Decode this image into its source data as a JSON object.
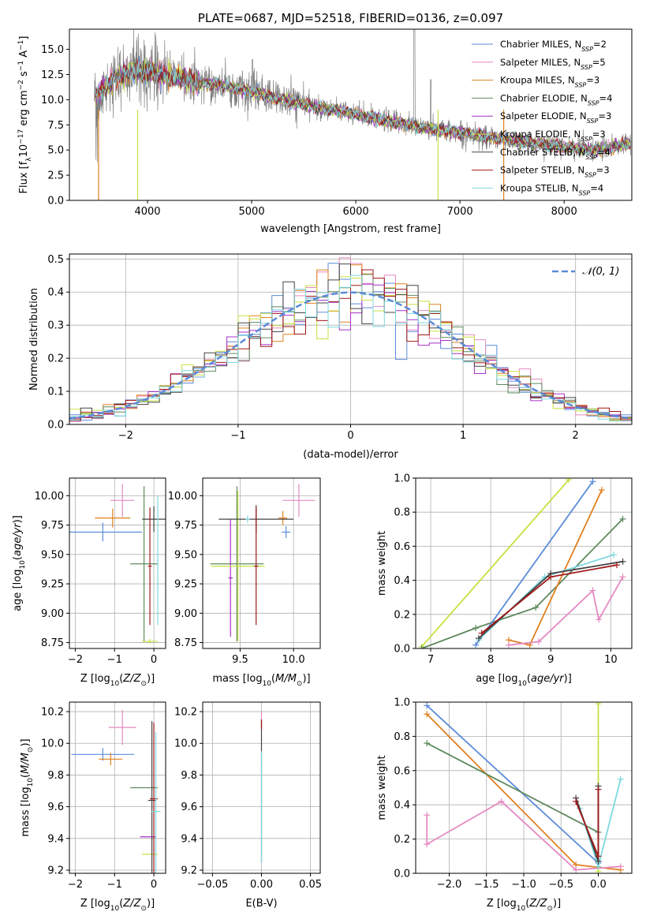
{
  "colors": {
    "chabrier_miles": "#5b8bd9",
    "salpeter_miles": "#e58ac0",
    "kroupa_miles": "#e0801f",
    "chabrier_elodie": "#5e8a5e",
    "salpeter_elodie": "#a830c8",
    "kroupa_elodie": "#c8e040",
    "chabrier_stelib": "#444444",
    "salpeter_stelib": "#a01818",
    "kroupa_stelib": "#7fd8e0",
    "data": "#808080"
  },
  "chart_data": [
    {
      "id": "spectrum",
      "type": "line",
      "title": "PLATE=0687, MJD=52518, FIBERID=0136, z=0.097",
      "xlabel": "wavelength [Angstrom, rest frame]",
      "ylabel_parts": [
        "Flux [f",
        "λ",
        "10",
        "−17",
        " erg cm",
        "−2",
        " s",
        "−1",
        " A",
        "−1",
        "]"
      ],
      "xlim": [
        3250,
        8650
      ],
      "ylim": [
        0,
        17
      ],
      "x_ticks": [
        4000,
        5000,
        6000,
        7000,
        8000
      ],
      "x_tick_labels": [
        "4000",
        "5000",
        "6000",
        "7000",
        "8000"
      ],
      "y_ticks": [
        0,
        2.5,
        5,
        7.5,
        10,
        12.5,
        15
      ],
      "y_tick_labels": [
        "0.0",
        "2.5",
        "5.0",
        "7.5",
        "10.0",
        "12.5",
        "15.0"
      ],
      "continuum": {
        "x": [
          3450,
          3700,
          3900,
          4100,
          4400,
          4700,
          5000,
          5300,
          5600,
          5900,
          6200,
          6500,
          6800,
          7100,
          7400,
          7700,
          8000,
          8300,
          8600
        ],
        "y": [
          10.0,
          12.3,
          12.8,
          12.6,
          11.9,
          11.4,
          10.8,
          10.0,
          9.3,
          8.8,
          8.1,
          7.5,
          7.0,
          6.6,
          6.1,
          5.7,
          5.3,
          5.0,
          5.6
        ]
      },
      "legend": [
        {
          "key": "chabrier_miles",
          "label": "Chabrier MILES, N",
          "sub": "SSP",
          "suffix": "=2"
        },
        {
          "key": "salpeter_miles",
          "label": "Salpeter MILES, N",
          "sub": "SSP",
          "suffix": "=5"
        },
        {
          "key": "kroupa_miles",
          "label": "Kroupa MILES, N",
          "sub": "SSP",
          "suffix": "=3"
        },
        {
          "key": "chabrier_elodie",
          "label": "Chabrier ELODIE, N",
          "sub": "SSP",
          "suffix": "=4"
        },
        {
          "key": "salpeter_elodie",
          "label": "Salpeter ELODIE, N",
          "sub": "SSP",
          "suffix": "=3"
        },
        {
          "key": "kroupa_elodie",
          "label": "Kroupa ELODIE, N",
          "sub": "SSP",
          "suffix": "=3"
        },
        {
          "key": "chabrier_stelib",
          "label": "Chabrier STELIB, N",
          "sub": "SSP",
          "suffix": "=4"
        },
        {
          "key": "salpeter_stelib",
          "label": "Salpeter STELIB, N",
          "sub": "SSP",
          "suffix": "=3"
        },
        {
          "key": "kroupa_stelib",
          "label": "Kroupa STELIB, N",
          "sub": "SSP",
          "suffix": "=4"
        }
      ]
    },
    {
      "id": "residuals",
      "type": "line",
      "xlabel": "(data-model)/error",
      "ylabel": "Normed distribution",
      "xlim": [
        -2.5,
        2.5
      ],
      "ylim": [
        0,
        0.515
      ],
      "x_ticks": [
        -2,
        -1,
        0,
        1,
        2
      ],
      "x_tick_labels": [
        "−2",
        "−1",
        "0",
        "1",
        "2"
      ],
      "y_ticks": [
        0,
        0.1,
        0.2,
        0.3,
        0.4,
        0.5
      ],
      "y_tick_labels": [
        "0.0",
        "0.1",
        "0.2",
        "0.3",
        "0.4",
        "0.5"
      ],
      "legend_label": "𝒩(0, 1)",
      "bin_width": 0.1,
      "grid": true
    },
    {
      "id": "age_vs_Z",
      "type": "scatter",
      "xlabel": "Z [log10(Z/Z⊙)]",
      "ylabel": "age  [log10(age/yr)]",
      "xlim": [
        -2.15,
        0.3
      ],
      "ylim": [
        8.7,
        10.15
      ],
      "x_ticks": [
        -2,
        -1,
        0
      ],
      "x_tick_labels": [
        "−2",
        "−1",
        "0"
      ],
      "y_ticks": [
        8.75,
        9.0,
        9.25,
        9.5,
        9.75,
        10.0
      ],
      "y_tick_labels": [
        "8.75",
        "9.00",
        "9.25",
        "9.50",
        "9.75",
        "10.00"
      ],
      "points": [
        {
          "key": "chabrier_miles",
          "x": -1.3,
          "xerr": 1.0,
          "y": 9.69,
          "yerr": 0.08
        },
        {
          "key": "kroupa_miles",
          "x": -1.05,
          "xerr": 0.45,
          "y": 9.81,
          "yerr": 0.08
        },
        {
          "key": "salpeter_miles",
          "x": -0.8,
          "xerr": 0.3,
          "y": 9.96,
          "yerr": 0.14
        },
        {
          "key": "chabrier_elodie",
          "x": -0.25,
          "xerr": 0.35,
          "y": 9.42,
          "yerr": 0.66
        },
        {
          "key": "kroupa_elodie",
          "x": -0.1,
          "xerr": 0.2,
          "y": 8.76,
          "yerr": 0.02
        },
        {
          "key": "chabrier_stelib",
          "x": 0.0,
          "xerr": 0.3,
          "y": 9.8,
          "yerr": 0.11
        },
        {
          "key": "salpeter_stelib",
          "x": -0.1,
          "xerr": 0.05,
          "y": 9.4,
          "yerr": 0.5
        },
        {
          "key": "kroupa_stelib",
          "x": 0.1,
          "xerr": 0.02,
          "y": 9.45,
          "yerr": 0.55
        }
      ]
    },
    {
      "id": "age_vs_mass",
      "type": "scatter",
      "xlabel": "mass [log10(M/M⊙)]",
      "ylabel": "",
      "xlim": [
        9.15,
        10.25
      ],
      "ylim": [
        8.7,
        10.15
      ],
      "x_ticks": [
        9.5,
        10.0
      ],
      "x_tick_labels": [
        "9.5",
        "10.0"
      ],
      "y_ticks": [
        8.75,
        9.0,
        9.25,
        9.5,
        9.75,
        10.0
      ],
      "y_tick_labels": [
        "8.75",
        "9.00",
        "9.25",
        "9.50",
        "9.75",
        "10.00"
      ],
      "points": [
        {
          "key": "chabrier_miles",
          "x": 9.93,
          "xerr": 0.04,
          "y": 9.69,
          "yerr": 0.05
        },
        {
          "key": "kroupa_miles",
          "x": 9.9,
          "xerr": 0.04,
          "y": 9.81,
          "yerr": 0.06
        },
        {
          "key": "salpeter_miles",
          "x": 10.05,
          "xerr": 0.15,
          "y": 9.96,
          "yerr": 0.14
        },
        {
          "key": "chabrier_elodie",
          "x": 9.47,
          "xerr": 0.25,
          "y": 9.42,
          "yerr": 0.66
        },
        {
          "key": "salpeter_elodie",
          "x": 9.41,
          "xerr": 0.02,
          "y": 9.3,
          "yerr": 0.5
        },
        {
          "key": "kroupa_elodie",
          "x": 9.48,
          "xerr": 0.25,
          "y": 9.4,
          "yerr": 0.64
        },
        {
          "key": "chabrier_stelib",
          "x": 9.65,
          "xerr": 0.35,
          "y": 9.8,
          "yerr": 0.12
        },
        {
          "key": "salpeter_stelib",
          "x": 9.65,
          "xerr": 0.02,
          "y": 9.4,
          "yerr": 0.5
        },
        {
          "key": "kroupa_stelib",
          "x": 9.57,
          "xerr": 0.02,
          "y": 9.8,
          "yerr": 0.03
        }
      ]
    },
    {
      "id": "weight_vs_age",
      "type": "line",
      "xlabel": "age  [log10(age/yr)]",
      "ylabel": "mass weight",
      "xlim": [
        6.75,
        10.35
      ],
      "ylim": [
        0,
        1.0
      ],
      "x_ticks": [
        7,
        8,
        9,
        10
      ],
      "x_tick_labels": [
        "7",
        "8",
        "9",
        "10"
      ],
      "y_ticks": [
        0,
        0.2,
        0.4,
        0.6,
        0.8,
        1.0
      ],
      "y_tick_labels": [
        "0.0",
        "0.2",
        "0.4",
        "0.6",
        "0.8",
        "1.0"
      ],
      "series": [
        {
          "key": "kroupa_elodie",
          "x": [
            6.85,
            9.3
          ],
          "y": [
            0.01,
            0.99
          ]
        },
        {
          "key": "chabrier_elodie",
          "x": [
            6.85,
            7.75,
            8.75,
            10.2
          ],
          "y": [
            0.0,
            0.12,
            0.24,
            0.76
          ]
        },
        {
          "key": "chabrier_miles",
          "x": [
            7.75,
            9.7
          ],
          "y": [
            0.02,
            0.98
          ]
        },
        {
          "key": "kroupa_miles",
          "x": [
            8.3,
            8.65,
            9.85
          ],
          "y": [
            0.05,
            0.02,
            0.93
          ]
        },
        {
          "key": "salpeter_miles",
          "x": [
            8.3,
            8.8,
            9.7,
            9.8,
            10.2
          ],
          "y": [
            0.02,
            0.04,
            0.34,
            0.17,
            0.42
          ]
        },
        {
          "key": "kroupa_stelib",
          "x": [
            7.8,
            8.9,
            10.05
          ],
          "y": [
            0.05,
            0.42,
            0.55
          ]
        },
        {
          "key": "chabrier_stelib",
          "x": [
            7.8,
            9.0,
            10.2
          ],
          "y": [
            0.06,
            0.44,
            0.51
          ]
        },
        {
          "key": "salpeter_stelib",
          "x": [
            7.85,
            9.0,
            10.1
          ],
          "y": [
            0.09,
            0.42,
            0.49
          ]
        }
      ],
      "grid": true
    },
    {
      "id": "mass_vs_Z",
      "type": "scatter",
      "xlabel": "Z [log10(Z/Z⊙)]",
      "ylabel": "mass [log10(M/M⊙)]",
      "xlim": [
        -2.15,
        0.3
      ],
      "ylim": [
        9.18,
        10.26
      ],
      "x_ticks": [
        -2,
        -1,
        0
      ],
      "x_tick_labels": [
        "−2",
        "−1",
        "0"
      ],
      "y_ticks": [
        9.2,
        9.4,
        9.6,
        9.8,
        10.0,
        10.2
      ],
      "y_tick_labels": [
        "9.2",
        "9.4",
        "9.6",
        "9.8",
        "10.0",
        "10.2"
      ],
      "points": [
        {
          "key": "chabrier_miles",
          "x": -1.3,
          "xerr": 0.8,
          "y": 9.93,
          "yerr": 0.04
        },
        {
          "key": "kroupa_miles",
          "x": -1.1,
          "xerr": 0.3,
          "y": 9.9,
          "yerr": 0.04
        },
        {
          "key": "salpeter_miles",
          "x": -0.8,
          "xerr": 0.35,
          "y": 10.1,
          "yerr": 0.11
        },
        {
          "key": "chabrier_elodie",
          "x": -0.25,
          "xerr": 0.35,
          "y": 9.72,
          "yerr": 0.0
        },
        {
          "key": "salpeter_elodie",
          "x": -0.15,
          "xerr": 0.2,
          "y": 9.41,
          "yerr": 0.0
        },
        {
          "key": "kroupa_elodie",
          "x": -0.1,
          "xerr": 0.2,
          "y": 9.3,
          "yerr": 0.0
        },
        {
          "key": "chabrier_stelib",
          "x": -0.05,
          "xerr": 0.1,
          "y": 9.64,
          "yerr": 0.5
        },
        {
          "key": "salpeter_stelib",
          "x": 0.0,
          "xerr": 0.1,
          "y": 9.65,
          "yerr": 0.48
        },
        {
          "key": "kroupa_stelib",
          "x": 0.05,
          "xerr": 0.12,
          "y": 9.57,
          "yerr": 0.5
        }
      ]
    },
    {
      "id": "mass_vs_ebv",
      "type": "scatter",
      "xlabel": "E(B-V)",
      "ylabel": "",
      "xlim": [
        -0.06,
        0.06
      ],
      "ylim": [
        9.18,
        10.26
      ],
      "x_ticks": [
        -0.05,
        0.0,
        0.05
      ],
      "x_tick_labels": [
        "−0.05",
        "0.00",
        "0.05"
      ],
      "y_ticks": [
        9.2,
        9.4,
        9.6,
        9.8,
        10.0,
        10.2
      ],
      "y_tick_labels": [
        "9.2",
        "9.4",
        "9.6",
        "9.8",
        "10.0",
        "10.2"
      ],
      "points": [
        {
          "key": "chabrier_stelib",
          "x": 0.0,
          "xerr": 0.0,
          "y": 9.7,
          "yerr": 0.45
        },
        {
          "key": "salpeter_miles",
          "x": 0.0,
          "xerr": 0.0,
          "y": 10.15,
          "yerr": 0.05
        },
        {
          "key": "salpeter_stelib",
          "x": 0.0,
          "xerr": 0.0,
          "y": 10.12,
          "yerr": 0.03
        },
        {
          "key": "kroupa_stelib",
          "x": 0.0,
          "xerr": 0.0,
          "y": 9.6,
          "yerr": 0.35
        }
      ]
    },
    {
      "id": "weight_vs_Z",
      "type": "line",
      "xlabel": "Z [log10(Z/Z⊙)]",
      "ylabel": "mass weight",
      "xlim": [
        -2.45,
        0.45
      ],
      "ylim": [
        0,
        1.0
      ],
      "x_ticks": [
        -2.0,
        -1.5,
        -1.0,
        -0.5,
        0.0
      ],
      "x_tick_labels": [
        "−2.0",
        "−1.5",
        "−1.0",
        "−0.5",
        "0.0"
      ],
      "y_ticks": [
        0,
        0.2,
        0.4,
        0.6,
        0.8,
        1.0
      ],
      "y_tick_labels": [
        "0.0",
        "0.2",
        "0.4",
        "0.6",
        "0.8",
        "1.0"
      ],
      "series": [
        {
          "key": "chabrier_miles",
          "x": [
            -2.3,
            0.0
          ],
          "y": [
            0.98,
            0.06
          ]
        },
        {
          "key": "kroupa_miles",
          "x": [
            -2.3,
            -0.3,
            0.3
          ],
          "y": [
            0.93,
            0.05,
            0.02
          ]
        },
        {
          "key": "chabrier_elodie",
          "x": [
            -2.3,
            0.0
          ],
          "y": [
            0.76,
            0.24
          ]
        },
        {
          "key": "salpeter_miles",
          "x": [
            -2.3,
            -2.3,
            -1.3,
            -0.3,
            0.3
          ],
          "y": [
            0.34,
            0.17,
            0.42,
            0.02,
            0.04
          ]
        },
        {
          "key": "kroupa_elodie",
          "x": [
            0.0,
            0.0
          ],
          "y": [
            0.99,
            0.01
          ]
        },
        {
          "key": "kroupa_stelib",
          "x": [
            -0.25,
            0.0,
            0.3
          ],
          "y": [
            0.38,
            0.04,
            0.55
          ]
        },
        {
          "key": "chabrier_stelib",
          "x": [
            -0.3,
            0.0,
            0.0
          ],
          "y": [
            0.44,
            0.07,
            0.51
          ]
        },
        {
          "key": "salpeter_stelib",
          "x": [
            -0.3,
            0.0,
            0.0
          ],
          "y": [
            0.42,
            0.1,
            0.49
          ]
        }
      ],
      "grid": true
    }
  ]
}
